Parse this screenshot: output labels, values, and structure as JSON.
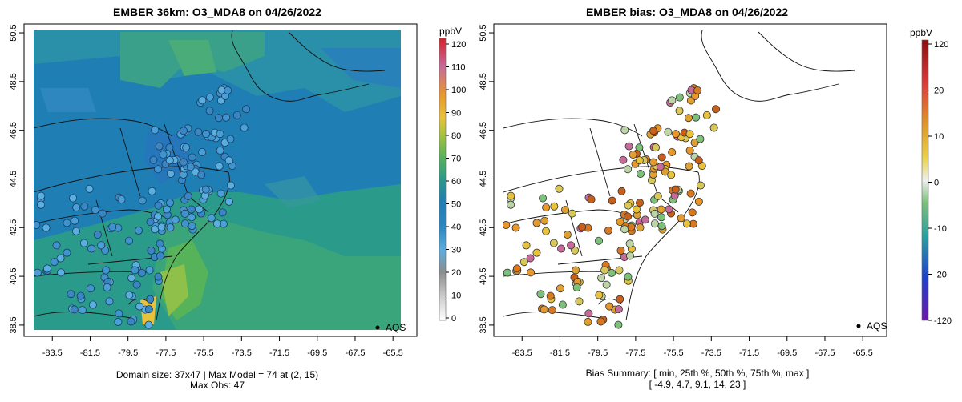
{
  "chart_data": [
    {
      "type": "heatmap",
      "title": "EMBER 36km: O3_MDA8 on 04/26/2022",
      "x_ticks": [
        "-83.5",
        "-81.5",
        "-79.5",
        "-77.5",
        "-75.5",
        "-73.5",
        "-71.5",
        "-69.5",
        "-67.5",
        "-65.5"
      ],
      "y_ticks": [
        "38.5",
        "40.5",
        "42.5",
        "44.5",
        "46.5",
        "48.5",
        "50.5"
      ],
      "xlim": [
        -84.4,
        -65.0
      ],
      "ylim": [
        38.3,
        50.6
      ],
      "colorbar": {
        "unit": "ppbV",
        "range": [
          0,
          120
        ],
        "ticks": [
          "0",
          "10",
          "20",
          "30",
          "40",
          "50",
          "60",
          "70",
          "80",
          "90",
          "100",
          "110",
          "120"
        ]
      },
      "legend": "AQS",
      "footer": [
        "Domain size: 37x47 | Max Model = 74 at (2, 15)",
        "Max Obs: 47"
      ]
    },
    {
      "type": "scatter",
      "title": "EMBER bias: O3_MDA8 on 04/26/2022",
      "x_ticks": [
        "-83.5",
        "-81.5",
        "-79.5",
        "-77.5",
        "-75.5",
        "-73.5",
        "-71.5",
        "-69.5",
        "-67.5",
        "-65.5"
      ],
      "y_ticks": [
        "38.5",
        "40.5",
        "42.5",
        "44.5",
        "46.5",
        "48.5",
        "50.5"
      ],
      "xlim": [
        -84.4,
        -65.0
      ],
      "ylim": [
        38.3,
        50.6
      ],
      "colorbar": {
        "unit": "ppbV",
        "range": [
          -120,
          120
        ],
        "ticks": [
          "-120",
          "-20",
          "-10",
          "0",
          "10",
          "20",
          "120"
        ]
      },
      "legend": "AQS",
      "footer": [
        "Bias Summary: [ min, 25th %, 50th %, 75th %, max ]",
        "[ -4.9,   4.7,   9.1,   14,   23 ]"
      ]
    }
  ],
  "colors": {
    "ozone_background": "#1f7fb5",
    "ozone_high": "#d8c23a",
    "site_fill_left": "#4a9fd8",
    "bias_orange": "#d9781f",
    "bias_yellow": "#e8c23a"
  }
}
